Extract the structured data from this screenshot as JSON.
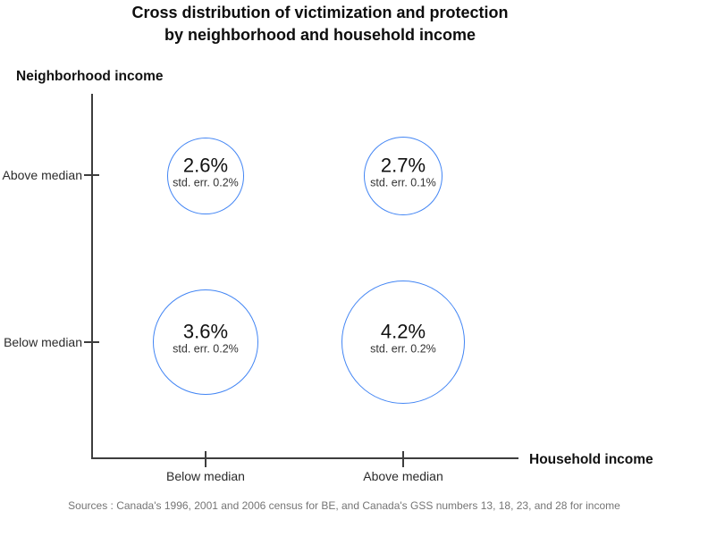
{
  "title": {
    "line1": "Cross distribution of victimization and protection",
    "line2": "by neighborhood and household income"
  },
  "axes": {
    "y_label": "Neighborhood income",
    "x_label": "Household income",
    "y_ticks": [
      "Above median",
      "Below median"
    ],
    "x_ticks": [
      "Below median",
      "Above median"
    ]
  },
  "source": "Sources : Canada's 1996, 2001 and 2006 census for BE, and Canada's GSS numbers 13, 18, 23, and 28 for income",
  "colors": {
    "bubble_stroke": "#4285f4",
    "axis_line": "#3d3d3d",
    "title_text": "#0d0d0d",
    "source_text": "#757575"
  },
  "chart_data": {
    "type": "scatter",
    "subtype": "bubble",
    "title": "Cross distribution of victimization and protection by neighborhood and household income",
    "xlabel": "Household income",
    "ylabel": "Neighborhood income",
    "x_categories": [
      "Below median",
      "Above median"
    ],
    "y_categories": [
      "Above median",
      "Below median"
    ],
    "bubble_size_rule": "radius proportional to value_pct",
    "points": [
      {
        "x": "Below median",
        "y": "Above median",
        "value_pct": 2.6,
        "std_err_pct": 0.2,
        "label": "2.6%",
        "sub_label": "std. err. 0.2%"
      },
      {
        "x": "Above median",
        "y": "Above median",
        "value_pct": 2.7,
        "std_err_pct": 0.1,
        "label": "2.7%",
        "sub_label": "std. err. 0.1%"
      },
      {
        "x": "Below median",
        "y": "Below median",
        "value_pct": 3.6,
        "std_err_pct": 0.2,
        "label": "3.6%",
        "sub_label": "std. err. 0.2%"
      },
      {
        "x": "Above median",
        "y": "Below median",
        "value_pct": 4.2,
        "std_err_pct": 0.2,
        "label": "4.2%",
        "sub_label": "std. err. 0.2%"
      }
    ],
    "legend": "off",
    "grid": "off"
  }
}
